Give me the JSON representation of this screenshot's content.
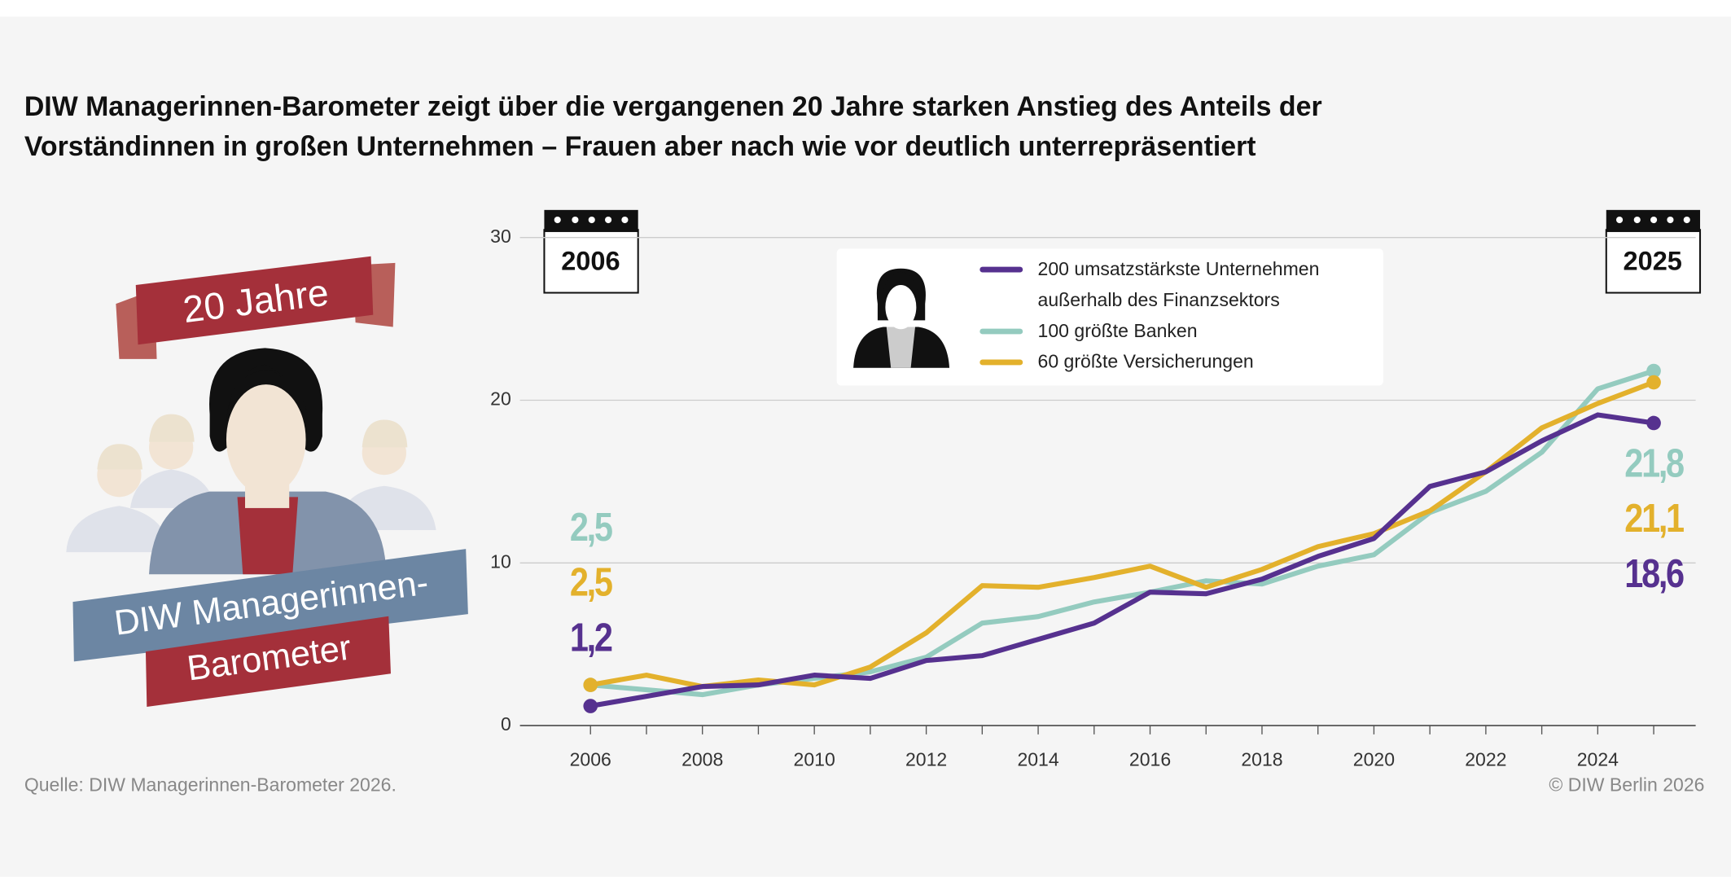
{
  "chart_data": {
    "type": "line",
    "title": [
      "DIW Managerinnen-Barometer zeigt über die vergangenen 20 Jahre starken Anstieg des Anteils der",
      "Vorständinnen in großen Unternehmen – Frauen aber nach wie vor deutlich unterrepräsentiert"
    ],
    "x": [
      2006,
      2007,
      2008,
      2009,
      2010,
      2011,
      2012,
      2013,
      2014,
      2015,
      2016,
      2017,
      2018,
      2019,
      2020,
      2021,
      2022,
      2023,
      2024,
      2025
    ],
    "series": [
      {
        "name": "200 umsatzstärkste Unternehmen\naußerhalb des Finanzsektors",
        "color": "#56318f",
        "values": [
          1.2,
          1.8,
          2.4,
          2.5,
          3.1,
          2.9,
          4.0,
          4.3,
          5.3,
          6.3,
          8.2,
          8.1,
          9.0,
          10.4,
          11.5,
          14.7,
          15.6,
          17.5,
          19.1,
          18.6
        ],
        "value_labels": [
          "1,2",
          null,
          null,
          null,
          null,
          null,
          null,
          null,
          null,
          null,
          null,
          null,
          null,
          null,
          null,
          null,
          null,
          null,
          null,
          "18,6"
        ]
      },
      {
        "name": "100 größte Banken",
        "color": "#94cbbf",
        "values": [
          2.5,
          2.2,
          1.9,
          2.5,
          2.9,
          3.3,
          4.2,
          6.3,
          6.7,
          7.6,
          8.2,
          8.9,
          8.7,
          9.8,
          10.5,
          13.1,
          14.4,
          16.8,
          20.7,
          21.8
        ],
        "value_labels": [
          "2,5",
          null,
          null,
          null,
          null,
          null,
          null,
          null,
          null,
          null,
          null,
          null,
          null,
          null,
          null,
          null,
          null,
          null,
          null,
          "21,8"
        ]
      },
      {
        "name": "60 größte Versicherungen",
        "color": "#e3b12c",
        "values": [
          2.5,
          3.1,
          2.4,
          2.8,
          2.5,
          3.6,
          5.7,
          8.6,
          8.5,
          9.1,
          9.8,
          8.5,
          9.6,
          11.0,
          11.8,
          13.2,
          15.6,
          18.3,
          19.8,
          21.1
        ],
        "value_labels": [
          "2,5",
          null,
          null,
          null,
          null,
          null,
          null,
          null,
          null,
          null,
          null,
          null,
          null,
          null,
          null,
          null,
          null,
          null,
          null,
          "21,1"
        ]
      }
    ],
    "xlim": [
      2004.7,
      2025.75
    ],
    "xticks": [
      2006,
      2008,
      2010,
      2012,
      2014,
      2016,
      2018,
      2020,
      2022,
      2024
    ],
    "ylim": [
      0,
      30
    ],
    "yticks": [
      0,
      10,
      20,
      30
    ],
    "grid": true,
    "annotations": [
      "2006",
      "2025"
    ],
    "illustration": {
      "banner": "20 Jahre",
      "label": [
        "DIW Managerinnen-",
        "Barometer"
      ]
    },
    "source": "Quelle: DIW Managerinnen-Barometer 2026.",
    "copyright": "© DIW Berlin 2026"
  }
}
